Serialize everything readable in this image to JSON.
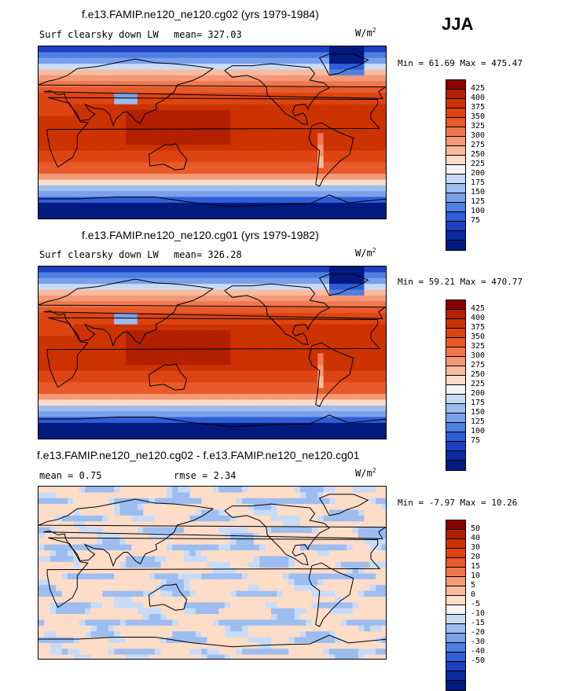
{
  "season": "JJA",
  "panels": [
    {
      "title": "f.e13.FAMIP.ne120_ne120.cg02 (yrs 1979-1984)",
      "variable": "Surf clearsky down LW",
      "stat1": "mean= 327.03",
      "stat2": "",
      "units": "W/m",
      "units_sup": "2",
      "minmax": "Min =  61.69 Max = 475.47",
      "field": "abs",
      "colors": [
        "#8B0000",
        "#B22000",
        "#CC3300",
        "#DD4411",
        "#E85A2A",
        "#F07850",
        "#F49878",
        "#F8BBA0",
        "#FDDCC8",
        "#F4F4F4",
        "#C7DBF7",
        "#9DBDF0",
        "#7BA0EA",
        "#4E7FE3",
        "#2F5ED8",
        "#1E40C0",
        "#0D2AA0",
        "#001A80"
      ],
      "labels": [
        "425",
        "400",
        "375",
        "350",
        "325",
        "300",
        "275",
        "250",
        "225",
        "200",
        "175",
        "150",
        "125",
        "100",
        "75"
      ]
    },
    {
      "title": "f.e13.FAMIP.ne120_ne120.cg01 (yrs 1979-1982)",
      "variable": "Surf clearsky down LW",
      "stat1": "mean= 326.28",
      "stat2": "",
      "units": "W/m",
      "units_sup": "2",
      "minmax": "Min =  59.21 Max = 470.77",
      "field": "abs",
      "colors": [
        "#8B0000",
        "#B22000",
        "#CC3300",
        "#DD4411",
        "#E85A2A",
        "#F07850",
        "#F49878",
        "#F8BBA0",
        "#FDDCC8",
        "#F4F4F4",
        "#C7DBF7",
        "#9DBDF0",
        "#7BA0EA",
        "#4E7FE3",
        "#2F5ED8",
        "#1E40C0",
        "#0D2AA0",
        "#001A80"
      ],
      "labels": [
        "425",
        "400",
        "375",
        "350",
        "325",
        "300",
        "275",
        "250",
        "225",
        "200",
        "175",
        "150",
        "125",
        "100",
        "75"
      ]
    },
    {
      "title": "f.e13.FAMIP.ne120_ne120.cg02 - f.e13.FAMIP.ne120_ne120.cg01",
      "variable": "mean =    0.75",
      "stat1": "",
      "stat2": "rmse =    2.34",
      "units": "W/m",
      "units_sup": "2",
      "minmax": "Min =  -7.97 Max =  10.26",
      "field": "diff",
      "colors": [
        "#8B0000",
        "#B22000",
        "#CC3300",
        "#DD4411",
        "#E85A2A",
        "#F07850",
        "#F49878",
        "#F8BBA0",
        "#FDDCC8",
        "#F4F4F4",
        "#C7DBF7",
        "#9DBDF0",
        "#7BA0EA",
        "#4E7FE3",
        "#2F5ED8",
        "#1E40C0",
        "#0D2AA0",
        "#001A80"
      ],
      "labels": [
        "50",
        "40",
        "30",
        "20",
        "15",
        "10",
        "5",
        "0",
        "-5",
        "-10",
        "-15",
        "-20",
        "-30",
        "-40",
        "-50"
      ]
    }
  ],
  "chart_data": [
    {
      "type": "heatmap",
      "title": "f.e13.FAMIP.ne120_ne120.cg02 (yrs 1979-1984)",
      "subtitle": "Surf clearsky down LW",
      "mean": 327.03,
      "min": 61.69,
      "max": 475.47,
      "units": "W/m2",
      "contour_levels": [
        75,
        100,
        125,
        150,
        175,
        200,
        225,
        250,
        275,
        300,
        325,
        350,
        375,
        400,
        425
      ]
    },
    {
      "type": "heatmap",
      "title": "f.e13.FAMIP.ne120_ne120.cg01 (yrs 1979-1982)",
      "subtitle": "Surf clearsky down LW",
      "mean": 326.28,
      "min": 59.21,
      "max": 470.77,
      "units": "W/m2",
      "contour_levels": [
        75,
        100,
        125,
        150,
        175,
        200,
        225,
        250,
        275,
        300,
        325,
        350,
        375,
        400,
        425
      ]
    },
    {
      "type": "heatmap",
      "title": "f.e13.FAMIP.ne120_ne120.cg02 - f.e13.FAMIP.ne120_ne120.cg01",
      "mean": 0.75,
      "rmse": 2.34,
      "min": -7.97,
      "max": 10.26,
      "units": "W/m2",
      "contour_levels": [
        -50,
        -40,
        -30,
        -20,
        -15,
        -10,
        -5,
        0,
        5,
        10,
        15,
        20,
        30,
        40,
        50
      ]
    }
  ]
}
